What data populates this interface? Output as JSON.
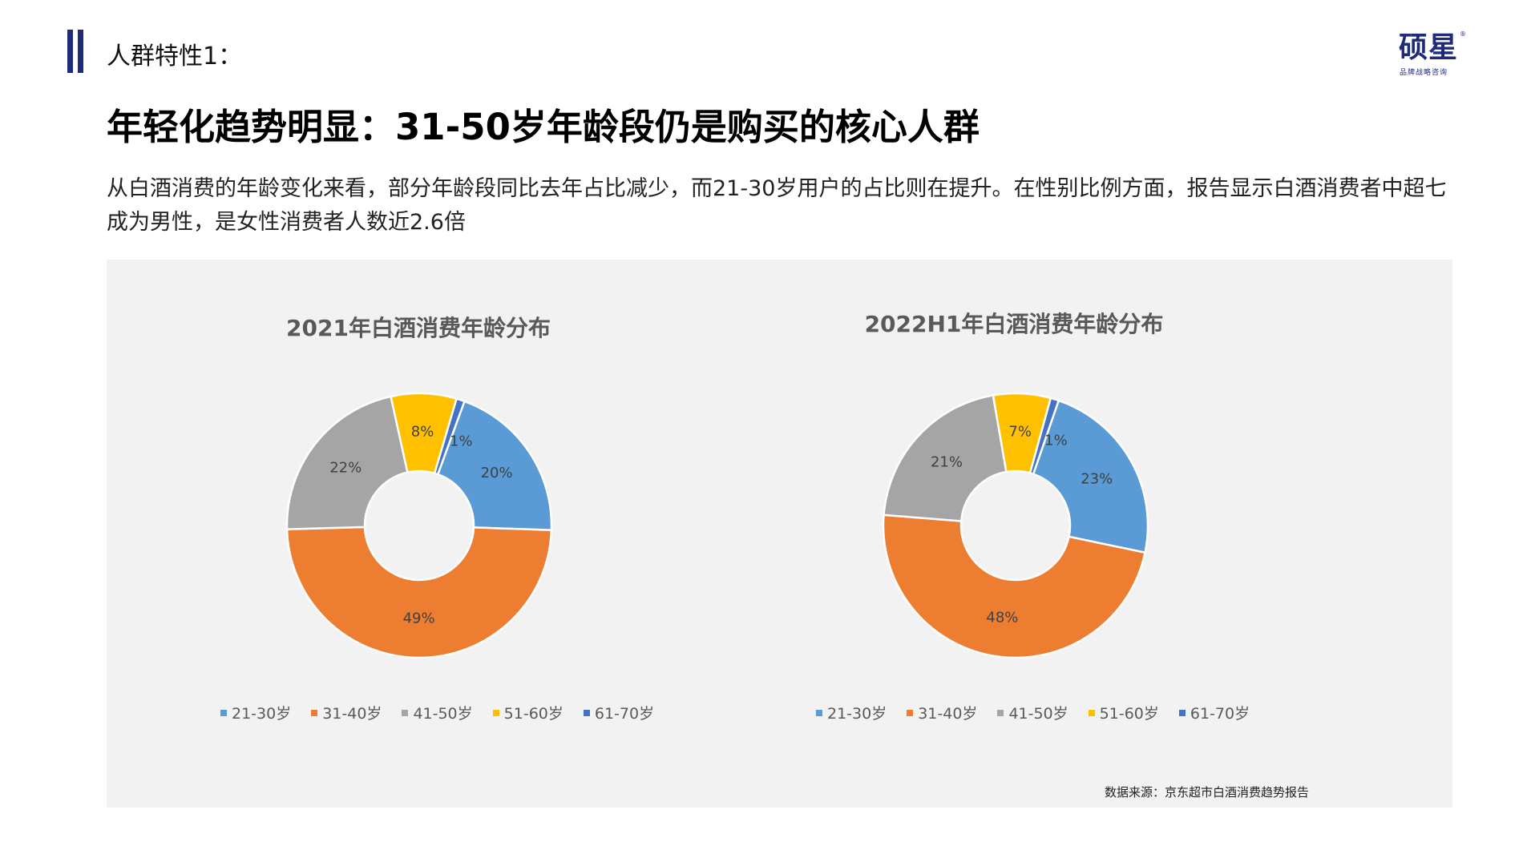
{
  "header": {
    "section_label": "人群特性1：",
    "logo_main": "硕星",
    "logo_sub": "品牌战略咨询",
    "logo_reg": "®"
  },
  "headline": "年轻化趋势明显：31-50岁年龄段仍是购买的核心人群",
  "description": "从白酒消费的年龄变化来看，部分年龄段同比去年占比减少，而21-30岁用户的占比则在提升。在性别比例方面，报告显示白酒消费者中超七成为男性，是女性消费者人数近2.6倍",
  "colors": {
    "21-30岁": "#5b9bd5",
    "31-40岁": "#ed7d31",
    "41-50岁": "#a5a5a5",
    "51-60岁": "#ffc000",
    "61-70岁": "#4472c4"
  },
  "chart_data": [
    {
      "type": "pie",
      "title": "2021年白酒消费年龄分布",
      "categories": [
        "21-30岁",
        "31-40岁",
        "41-50岁",
        "51-60岁",
        "61-70岁"
      ],
      "values": [
        20,
        49,
        22,
        8,
        1
      ],
      "labels": [
        "20%",
        "49%",
        "22%",
        "8%",
        "1%"
      ],
      "legend_position": "bottom"
    },
    {
      "type": "pie",
      "title": "2022H1年白酒消费年龄分布",
      "categories": [
        "21-30岁",
        "31-40岁",
        "41-50岁",
        "51-60岁",
        "61-70岁"
      ],
      "values": [
        23,
        48,
        21,
        7,
        1
      ],
      "labels": [
        "23%",
        "48%",
        "21%",
        "7%",
        "1%"
      ],
      "legend_position": "bottom"
    }
  ],
  "source": "数据来源：京东超市白酒消费趋势报告"
}
